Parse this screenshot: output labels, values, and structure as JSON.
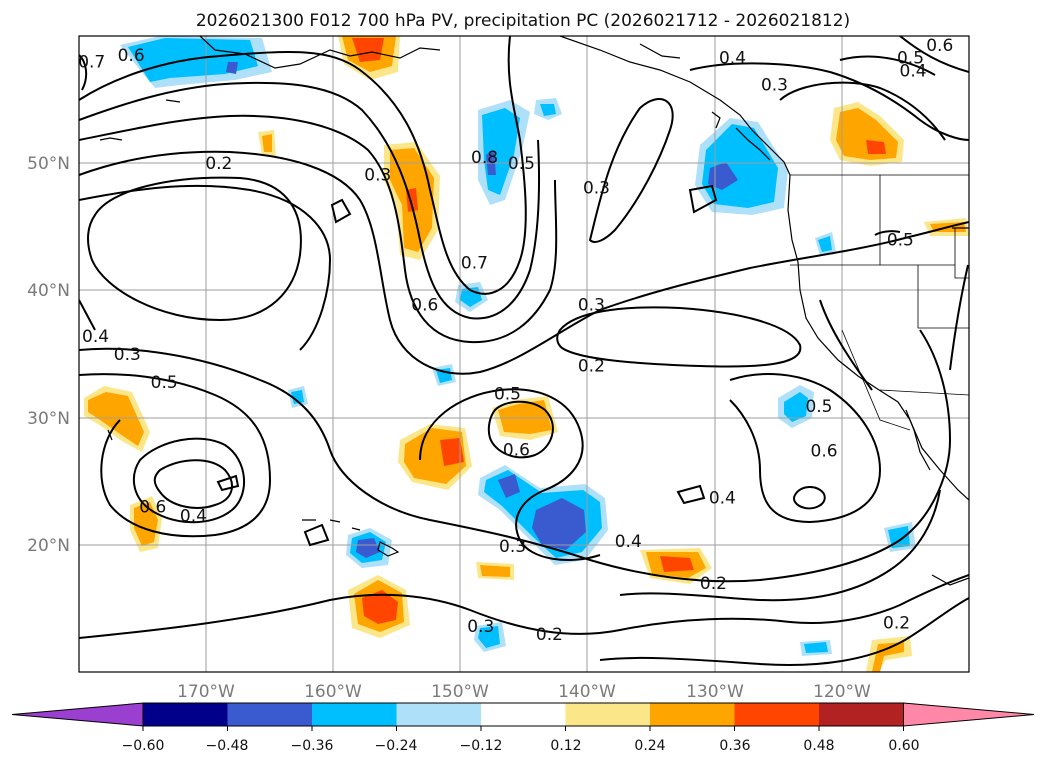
{
  "figure": {
    "title": "2026021300 F012 700 hPa PV, precipitation PC (2026021712 - 2026021812)"
  },
  "chart_data": {
    "type": "heatmap",
    "title": "2026021300 F012 700 hPa PV, precipitation PC (2026021712 - 2026021812)",
    "map": {
      "lon_range": [
        -180,
        -110
      ],
      "lat_range": [
        10,
        60
      ],
      "lat_ticks": [
        {
          "value": 20,
          "label": "20°N"
        },
        {
          "value": 30,
          "label": "30°N"
        },
        {
          "value": 40,
          "label": "40°N"
        },
        {
          "value": 50,
          "label": "50°N"
        }
      ],
      "lon_ticks": [
        {
          "value": -170,
          "label": "170°W"
        },
        {
          "value": -160,
          "label": "160°W"
        },
        {
          "value": -150,
          "label": "150°W"
        },
        {
          "value": -140,
          "label": "140°W"
        },
        {
          "value": -130,
          "label": "130°W"
        },
        {
          "value": -120,
          "label": "120°W"
        }
      ],
      "grid": true
    },
    "colorbar": {
      "ticks": [
        "−0.60",
        "−0.48",
        "−0.36",
        "−0.24",
        "−0.12",
        "0.12",
        "0.24",
        "0.36",
        "0.48",
        "0.60"
      ],
      "bins": [
        {
          "range": "below -0.60",
          "color": "#9a3fd0"
        },
        {
          "range": "-0.60 to -0.48",
          "color": "#00008b"
        },
        {
          "range": "-0.48 to -0.36",
          "color": "#3a5bd0"
        },
        {
          "range": "-0.36 to -0.24",
          "color": "#00bfff"
        },
        {
          "range": "-0.24 to -0.12",
          "color": "#aee0fa"
        },
        {
          "range": "-0.12 to 0.12",
          "color": "#ffffff"
        },
        {
          "range": "0.12 to 0.24",
          "color": "#fce68a"
        },
        {
          "range": "0.24 to 0.36",
          "color": "#ffa500"
        },
        {
          "range": "0.36 to 0.48",
          "color": "#ff4500"
        },
        {
          "range": "0.48 to 0.60",
          "color": "#b22222"
        },
        {
          "range": "above 0.60",
          "color": "#ff88a8"
        }
      ],
      "extend": "both"
    },
    "contour_labels": [
      {
        "text": "0.7",
        "lon": -179.0,
        "lat": 58.0
      },
      {
        "text": "0.6",
        "lon": -175.9,
        "lat": 58.5
      },
      {
        "text": "0.2",
        "lon": -169.0,
        "lat": 50.0
      },
      {
        "text": "0.3",
        "lon": -156.5,
        "lat": 49.1
      },
      {
        "text": "0.8",
        "lon": -148.1,
        "lat": 50.5
      },
      {
        "text": "0.5",
        "lon": -145.2,
        "lat": 50.0
      },
      {
        "text": "0.3",
        "lon": -139.3,
        "lat": 48.1
      },
      {
        "text": "0.4",
        "lon": -128.6,
        "lat": 58.3
      },
      {
        "text": "0.3",
        "lon": -125.3,
        "lat": 56.2
      },
      {
        "text": "0.6",
        "lon": -112.3,
        "lat": 59.3
      },
      {
        "text": "0.5",
        "lon": -114.6,
        "lat": 58.3
      },
      {
        "text": "0.4",
        "lon": -114.4,
        "lat": 57.3
      },
      {
        "text": "0.5",
        "lon": -115.4,
        "lat": 44.0
      },
      {
        "text": "0.7",
        "lon": -148.9,
        "lat": 42.2
      },
      {
        "text": "0.6",
        "lon": -152.8,
        "lat": 38.9
      },
      {
        "text": "0.3",
        "lon": -139.7,
        "lat": 38.9
      },
      {
        "text": "0.2",
        "lon": -139.7,
        "lat": 34.1
      },
      {
        "text": "0.4",
        "lon": -178.7,
        "lat": 36.4
      },
      {
        "text": "0.3",
        "lon": -176.2,
        "lat": 35.0
      },
      {
        "text": "0.5",
        "lon": -173.3,
        "lat": 32.8
      },
      {
        "text": "0.5",
        "lon": -146.3,
        "lat": 31.9
      },
      {
        "text": "0.6",
        "lon": -145.6,
        "lat": 27.5
      },
      {
        "text": "0.5",
        "lon": -121.8,
        "lat": 30.9
      },
      {
        "text": "0.6",
        "lon": -121.4,
        "lat": 27.4
      },
      {
        "text": "0.4",
        "lon": -129.4,
        "lat": 23.7
      },
      {
        "text": "0.6",
        "lon": -174.2,
        "lat": 23.0
      },
      {
        "text": "0.4",
        "lon": -171.0,
        "lat": 22.3
      },
      {
        "text": "0.3",
        "lon": -145.9,
        "lat": 19.9
      },
      {
        "text": "0.4",
        "lon": -136.8,
        "lat": 20.3
      },
      {
        "text": "0.2",
        "lon": -130.1,
        "lat": 17.0
      },
      {
        "text": "0.3",
        "lon": -148.4,
        "lat": 13.6
      },
      {
        "text": "0.2",
        "lon": -143.0,
        "lat": 13.0
      },
      {
        "text": "0.2",
        "lon": -115.7,
        "lat": 13.9
      }
    ]
  }
}
